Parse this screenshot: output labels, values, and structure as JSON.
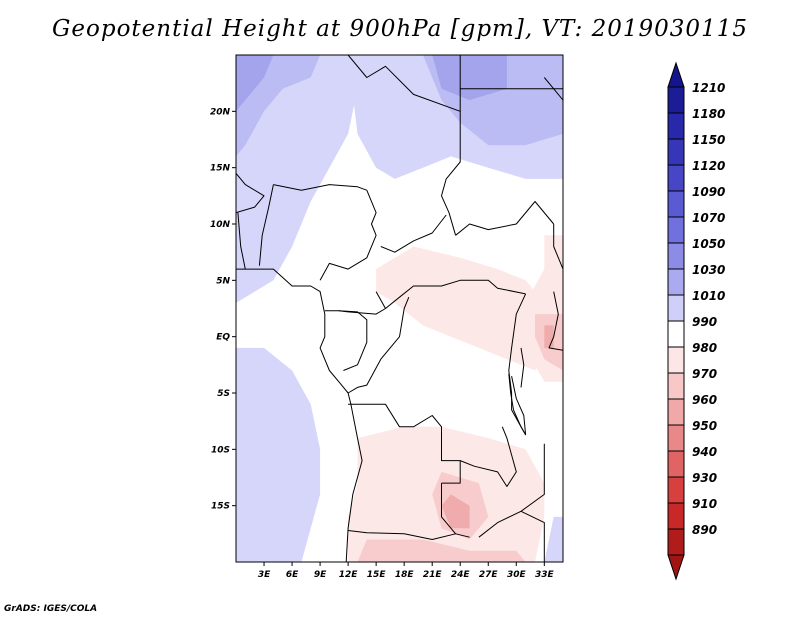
{
  "title": "Geopotential Height at 900hPa [gpm], VT: 2019030115",
  "footer": "GrADS: IGES/COLA",
  "map": {
    "lon_range": [
      0,
      35
    ],
    "lat_range": [
      -20,
      25
    ],
    "lat_ticks": [
      {
        "value": 20,
        "label": "20N"
      },
      {
        "value": 15,
        "label": "15N"
      },
      {
        "value": 10,
        "label": "10N"
      },
      {
        "value": 5,
        "label": "5N"
      },
      {
        "value": 0,
        "label": "EQ"
      },
      {
        "value": -5,
        "label": "5S"
      },
      {
        "value": -10,
        "label": "10S"
      },
      {
        "value": -15,
        "label": "15S"
      }
    ],
    "lon_ticks": [
      {
        "value": 3,
        "label": "3E"
      },
      {
        "value": 6,
        "label": "6E"
      },
      {
        "value": 9,
        "label": "9E"
      },
      {
        "value": 12,
        "label": "12E"
      },
      {
        "value": 15,
        "label": "15E"
      },
      {
        "value": 18,
        "label": "18E"
      },
      {
        "value": 21,
        "label": "21E"
      },
      {
        "value": 24,
        "label": "24E"
      },
      {
        "value": 27,
        "label": "27E"
      },
      {
        "value": 30,
        "label": "30E"
      },
      {
        "value": 33,
        "label": "33E"
      }
    ]
  },
  "colorbar": {
    "levels": [
      {
        "label": "1210",
        "color": "#1c1c96"
      },
      {
        "label": "1180",
        "color": "#2828aa"
      },
      {
        "label": "1150",
        "color": "#3636b8"
      },
      {
        "label": "1120",
        "color": "#4646c6"
      },
      {
        "label": "1090",
        "color": "#5a5ad2"
      },
      {
        "label": "1070",
        "color": "#7070de"
      },
      {
        "label": "1050",
        "color": "#8c8ce6"
      },
      {
        "label": "1030",
        "color": "#aaaaf0"
      },
      {
        "label": "1010",
        "color": "#cfcffa"
      },
      {
        "label": "990",
        "color": "#ffffff"
      },
      {
        "label": "980",
        "color": "#fde6e6"
      },
      {
        "label": "970",
        "color": "#f8c8c8"
      },
      {
        "label": "960",
        "color": "#f0a8a8"
      },
      {
        "label": "950",
        "color": "#e88888"
      },
      {
        "label": "940",
        "color": "#e06464"
      },
      {
        "label": "930",
        "color": "#d84040"
      },
      {
        "label": "910",
        "color": "#c82828"
      },
      {
        "label": "890",
        "color": "#b01c1c"
      }
    ],
    "top_color": "#14148c",
    "bottom_color": "#a01414"
  },
  "fields": [
    {
      "name": "blue-1010-west",
      "color": "#d6d6fa",
      "points": [
        [
          0,
          25
        ],
        [
          12,
          25
        ],
        [
          13,
          22
        ],
        [
          12,
          18
        ],
        [
          10,
          15
        ],
        [
          8,
          12
        ],
        [
          6,
          8
        ],
        [
          4,
          5
        ],
        [
          2,
          4
        ],
        [
          0,
          3
        ]
      ]
    },
    {
      "name": "blue-1010-southwest",
      "color": "#d6d6fa",
      "points": [
        [
          0,
          -1
        ],
        [
          3,
          -1
        ],
        [
          6,
          -3
        ],
        [
          8,
          -6
        ],
        [
          9,
          -10
        ],
        [
          9,
          -14
        ],
        [
          8,
          -17
        ],
        [
          7,
          -20
        ],
        [
          0,
          -20
        ]
      ]
    },
    {
      "name": "blue-1010-north",
      "color": "#d6d6fa",
      "points": [
        [
          12,
          25
        ],
        [
          35,
          25
        ],
        [
          35,
          14
        ],
        [
          31,
          14
        ],
        [
          27,
          15
        ],
        [
          23,
          16
        ],
        [
          20,
          15
        ],
        [
          17,
          14
        ],
        [
          15,
          15
        ],
        [
          13,
          18
        ]
      ]
    },
    {
      "name": "blue-1030-northeast",
      "color": "#bcbcf4",
      "points": [
        [
          20,
          25
        ],
        [
          35,
          25
        ],
        [
          35,
          18
        ],
        [
          31,
          17
        ],
        [
          27,
          17
        ],
        [
          24,
          19
        ],
        [
          22,
          21
        ]
      ]
    },
    {
      "name": "blue-1030-northwest",
      "color": "#bcbcf4",
      "points": [
        [
          0,
          25
        ],
        [
          9,
          25
        ],
        [
          8,
          23
        ],
        [
          5,
          22
        ],
        [
          3,
          20
        ],
        [
          1,
          17
        ],
        [
          0,
          16
        ]
      ]
    },
    {
      "name": "blue-1050-corner-nw",
      "color": "#a4a4ec",
      "points": [
        [
          0,
          25
        ],
        [
          4,
          25
        ],
        [
          3,
          23
        ],
        [
          1,
          21
        ],
        [
          0,
          20
        ]
      ]
    },
    {
      "name": "blue-1050-corner-ne",
      "color": "#a4a4ec",
      "points": [
        [
          21,
          25
        ],
        [
          29,
          25
        ],
        [
          29,
          22
        ],
        [
          25,
          21
        ],
        [
          22,
          22
        ]
      ]
    },
    {
      "name": "blue-1010-se-corner",
      "color": "#d6d6fa",
      "points": [
        [
          34,
          -16
        ],
        [
          35,
          -16
        ],
        [
          35,
          -20
        ],
        [
          33,
          -20
        ]
      ]
    },
    {
      "name": "red-980-central",
      "color": "#fde8e8",
      "points": [
        [
          15,
          6
        ],
        [
          19,
          8
        ],
        [
          24,
          7
        ],
        [
          28,
          6
        ],
        [
          31,
          5
        ],
        [
          33,
          3
        ],
        [
          34,
          -1
        ],
        [
          32,
          -3
        ],
        [
          29,
          -2
        ],
        [
          26,
          -1
        ],
        [
          23,
          0
        ],
        [
          20,
          1
        ],
        [
          17,
          3
        ],
        [
          15,
          4
        ]
      ]
    },
    {
      "name": "red-980-east",
      "color": "#fde8e8",
      "points": [
        [
          33,
          9
        ],
        [
          35,
          9
        ],
        [
          35,
          -4
        ],
        [
          33,
          -4
        ],
        [
          31,
          -1
        ],
        [
          31,
          3
        ],
        [
          33,
          6
        ]
      ]
    },
    {
      "name": "red-980-south",
      "color": "#fde8e8",
      "points": [
        [
          13,
          -9
        ],
        [
          18,
          -8
        ],
        [
          22,
          -8
        ],
        [
          27,
          -9
        ],
        [
          31,
          -10
        ],
        [
          33,
          -13
        ],
        [
          33,
          -16
        ],
        [
          32,
          -20
        ],
        [
          12,
          -20
        ],
        [
          12,
          -16
        ],
        [
          13,
          -13
        ]
      ]
    },
    {
      "name": "red-970-east",
      "color": "#f8cccc",
      "points": [
        [
          32,
          2
        ],
        [
          35,
          2
        ],
        [
          35,
          -3
        ],
        [
          33,
          -2
        ],
        [
          32,
          0
        ]
      ]
    },
    {
      "name": "red-970-south",
      "color": "#f8cccc",
      "points": [
        [
          22,
          -12
        ],
        [
          26,
          -13
        ],
        [
          27,
          -16
        ],
        [
          25,
          -18
        ],
        [
          22,
          -17
        ],
        [
          21,
          -14
        ]
      ]
    },
    {
      "name": "red-970-south-edge",
      "color": "#f8cccc",
      "points": [
        [
          14,
          -18
        ],
        [
          20,
          -18
        ],
        [
          25,
          -19
        ],
        [
          30,
          -19
        ],
        [
          31,
          -20
        ],
        [
          13,
          -20
        ]
      ]
    },
    {
      "name": "red-960-south-spot",
      "color": "#f0acac",
      "points": [
        [
          23,
          -14
        ],
        [
          25,
          -15
        ],
        [
          25,
          -17
        ],
        [
          23,
          -17
        ],
        [
          22,
          -15
        ]
      ]
    },
    {
      "name": "red-960-east-spot",
      "color": "#f0acac",
      "points": [
        [
          33,
          1
        ],
        [
          34,
          1
        ],
        [
          34,
          -1
        ],
        [
          33,
          -1
        ]
      ]
    }
  ],
  "borders": [
    {
      "name": "coastline-west-africa",
      "points": [
        [
          0,
          6
        ],
        [
          2,
          6
        ],
        [
          4,
          6
        ],
        [
          6,
          4.5
        ],
        [
          8,
          4.5
        ],
        [
          9,
          4
        ],
        [
          9.5,
          2
        ],
        [
          9.5,
          0
        ],
        [
          9,
          -1
        ],
        [
          10,
          -3
        ],
        [
          11,
          -4
        ],
        [
          12,
          -5
        ],
        [
          12.3,
          -6
        ],
        [
          13,
          -9
        ],
        [
          13.5,
          -11
        ],
        [
          12.5,
          -14
        ],
        [
          12,
          -17
        ],
        [
          11.8,
          -20
        ]
      ]
    },
    {
      "name": "border-libya-niger",
      "points": [
        [
          12,
          25
        ],
        [
          14,
          23
        ],
        [
          16,
          24
        ],
        [
          19,
          21.5
        ],
        [
          24,
          20
        ],
        [
          24,
          25
        ]
      ]
    },
    {
      "name": "border-chad-sudan",
      "points": [
        [
          24,
          20
        ],
        [
          24,
          15.5
        ],
        [
          22.5,
          14
        ],
        [
          22,
          12.5
        ],
        [
          22.8,
          11
        ],
        [
          23.5,
          9
        ]
      ]
    },
    {
      "name": "border-chad-car",
      "points": [
        [
          15.5,
          8
        ],
        [
          17,
          7.5
        ],
        [
          19,
          8.5
        ],
        [
          21,
          9.2
        ],
        [
          22.5,
          10.8
        ]
      ]
    },
    {
      "name": "border-nigeria-chad",
      "points": [
        [
          14,
          13
        ],
        [
          15,
          11
        ],
        [
          14.5,
          10
        ],
        [
          15,
          9
        ],
        [
          14,
          7
        ],
        [
          12,
          6
        ],
        [
          10,
          6.5
        ],
        [
          9,
          5
        ]
      ]
    },
    {
      "name": "border-niger-nigeria",
      "points": [
        [
          4,
          13.5
        ],
        [
          7,
          13
        ],
        [
          10,
          13.5
        ],
        [
          13,
          13.3
        ],
        [
          14,
          13
        ]
      ]
    },
    {
      "name": "border-benin-togo",
      "points": [
        [
          2.5,
          6.3
        ],
        [
          2.8,
          9
        ],
        [
          3.5,
          11.5
        ],
        [
          4,
          13.5
        ]
      ]
    },
    {
      "name": "border-togo-ghana",
      "points": [
        [
          1,
          6
        ],
        [
          0.5,
          8
        ],
        [
          0.2,
          11
        ]
      ]
    },
    {
      "name": "border-burkina",
      "points": [
        [
          0,
          11
        ],
        [
          2,
          11.5
        ],
        [
          3,
          12.5
        ],
        [
          1,
          13.5
        ],
        [
          0,
          14.5
        ]
      ]
    },
    {
      "name": "border-car-cameroon",
      "points": [
        [
          15,
          4
        ],
        [
          16,
          2.5
        ],
        [
          17.5,
          3.5
        ],
        [
          19,
          4.5
        ],
        [
          22,
          4.5
        ],
        [
          24,
          5
        ],
        [
          27,
          5
        ],
        [
          28,
          4.3
        ],
        [
          31,
          3.8
        ]
      ]
    },
    {
      "name": "border-sudan-ssudan",
      "points": [
        [
          23.5,
          9
        ],
        [
          25,
          10
        ],
        [
          27,
          9.5
        ],
        [
          30,
          10
        ],
        [
          32,
          12
        ],
        [
          34,
          10
        ]
      ]
    },
    {
      "name": "border-congo-drc",
      "points": [
        [
          12,
          -5
        ],
        [
          13,
          -4.5
        ],
        [
          14,
          -4.3
        ],
        [
          15.5,
          -2
        ],
        [
          17.5,
          0
        ],
        [
          18,
          2.5
        ],
        [
          18.5,
          3.5
        ]
      ]
    },
    {
      "name": "border-gabon-congo",
      "points": [
        [
          11,
          2.3
        ],
        [
          13,
          2.2
        ],
        [
          14,
          1.5
        ],
        [
          14,
          -0.5
        ],
        [
          13,
          -2.5
        ],
        [
          11.5,
          -3
        ]
      ]
    },
    {
      "name": "border-cameroon-gabon",
      "points": [
        [
          9.5,
          2.3
        ],
        [
          11,
          2.3
        ],
        [
          12,
          2.2
        ],
        [
          15,
          2
        ],
        [
          16,
          2.5
        ]
      ]
    },
    {
      "name": "border-drc-angola",
      "points": [
        [
          12,
          -6
        ],
        [
          16,
          -6
        ],
        [
          17.5,
          -8
        ],
        [
          19,
          -8
        ],
        [
          21,
          -7
        ],
        [
          22,
          -8
        ],
        [
          22,
          -11
        ],
        [
          24,
          -11
        ],
        [
          24,
          -13
        ],
        [
          22,
          -13
        ]
      ]
    },
    {
      "name": "border-angola-zambia",
      "points": [
        [
          22,
          -13
        ],
        [
          22,
          -16
        ],
        [
          23.5,
          -17.5
        ]
      ]
    },
    {
      "name": "border-angola-namibia",
      "points": [
        [
          12,
          -17.2
        ],
        [
          14,
          -17.4
        ],
        [
          18,
          -17.5
        ],
        [
          21,
          -18
        ],
        [
          23.5,
          -17.5
        ],
        [
          25,
          -17.8
        ]
      ]
    },
    {
      "name": "border-drc-zambia",
      "points": [
        [
          24,
          -11
        ],
        [
          25.5,
          -11.5
        ],
        [
          28,
          -12
        ],
        [
          29,
          -13.3
        ],
        [
          30,
          -12
        ],
        [
          29,
          -9
        ],
        [
          28.5,
          -8
        ]
      ]
    },
    {
      "name": "border-zambia-malawi",
      "points": [
        [
          33,
          -9.5
        ],
        [
          33,
          -12
        ],
        [
          33,
          -14
        ],
        [
          30.5,
          -15.5
        ],
        [
          28,
          -16.5
        ],
        [
          26,
          -17.8
        ]
      ]
    },
    {
      "name": "border-mozambique",
      "points": [
        [
          30.5,
          -15.5
        ],
        [
          33,
          -16.5
        ],
        [
          33,
          -20
        ]
      ]
    },
    {
      "name": "border-drc-east",
      "points": [
        [
          31,
          3.8
        ],
        [
          30,
          2
        ],
        [
          29.5,
          -1
        ],
        [
          29.2,
          -3
        ],
        [
          29.5,
          -5
        ],
        [
          29.5,
          -6.5
        ],
        [
          30.5,
          -8
        ],
        [
          31,
          -8.7
        ]
      ]
    },
    {
      "name": "border-uganda-kenya",
      "points": [
        [
          34,
          4
        ],
        [
          34.5,
          2
        ],
        [
          34,
          0
        ],
        [
          33.5,
          -1
        ],
        [
          35,
          -1.2
        ]
      ]
    },
    {
      "name": "border-rwanda-burundi",
      "points": [
        [
          30.5,
          -1
        ],
        [
          30.8,
          -2.5
        ],
        [
          30.5,
          -4.5
        ]
      ]
    },
    {
      "name": "border-ethiopia",
      "points": [
        [
          34,
          10
        ],
        [
          34,
          8
        ],
        [
          35,
          6
        ]
      ]
    },
    {
      "name": "lake-tanganyika",
      "points": [
        [
          29.2,
          -3.3
        ],
        [
          29.4,
          -5
        ],
        [
          29.7,
          -6.5
        ],
        [
          30.5,
          -8
        ],
        [
          31,
          -8.7
        ],
        [
          30.8,
          -7
        ],
        [
          30,
          -5.5
        ],
        [
          29.5,
          -3.5
        ]
      ]
    },
    {
      "name": "border-egypt-sudan",
      "points": [
        [
          24,
          22
        ],
        [
          35,
          22
        ]
      ]
    },
    {
      "name": "red-sea-coast",
      "points": [
        [
          33,
          23
        ],
        [
          34,
          22
        ],
        [
          35,
          21
        ]
      ]
    }
  ]
}
